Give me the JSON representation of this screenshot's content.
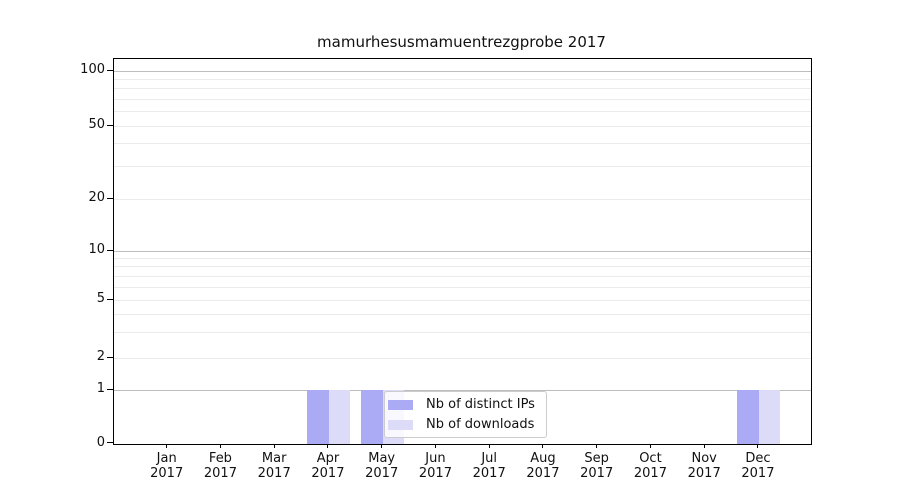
{
  "chart_data": {
    "type": "bar",
    "title": "mamurhesusmamuentrezgprobe 2017",
    "categories": [
      "Jan 2017",
      "Feb 2017",
      "Mar 2017",
      "Apr 2017",
      "May 2017",
      "Jun 2017",
      "Jul 2017",
      "Aug 2017",
      "Sep 2017",
      "Oct 2017",
      "Nov 2017",
      "Dec 2017"
    ],
    "series": [
      {
        "name": "Nb of distinct IPs",
        "color": "#aaaaf5",
        "values": [
          0,
          0,
          0,
          1,
          1,
          0,
          0,
          0,
          0,
          0,
          0,
          1
        ]
      },
      {
        "name": "Nb of downloads",
        "color": "#dcdcf8",
        "values": [
          0,
          0,
          0,
          1,
          1,
          0,
          0,
          0,
          0,
          0,
          0,
          1
        ]
      }
    ],
    "xlabel": "",
    "ylabel": "",
    "yscale": "symlog",
    "ylim": [
      0,
      115
    ],
    "y_tick_values": [
      0,
      1,
      2,
      5,
      10,
      20,
      50,
      100
    ],
    "y_gridlines": {
      "major": [
        1,
        10,
        100
      ],
      "minor": [
        2,
        3,
        4,
        5,
        6,
        7,
        8,
        9,
        20,
        30,
        40,
        50,
        60,
        70,
        80,
        90
      ]
    },
    "grid": true,
    "legend": {
      "position": "lower center",
      "labels": [
        "Nb of distinct IPs",
        "Nb of downloads"
      ]
    }
  }
}
